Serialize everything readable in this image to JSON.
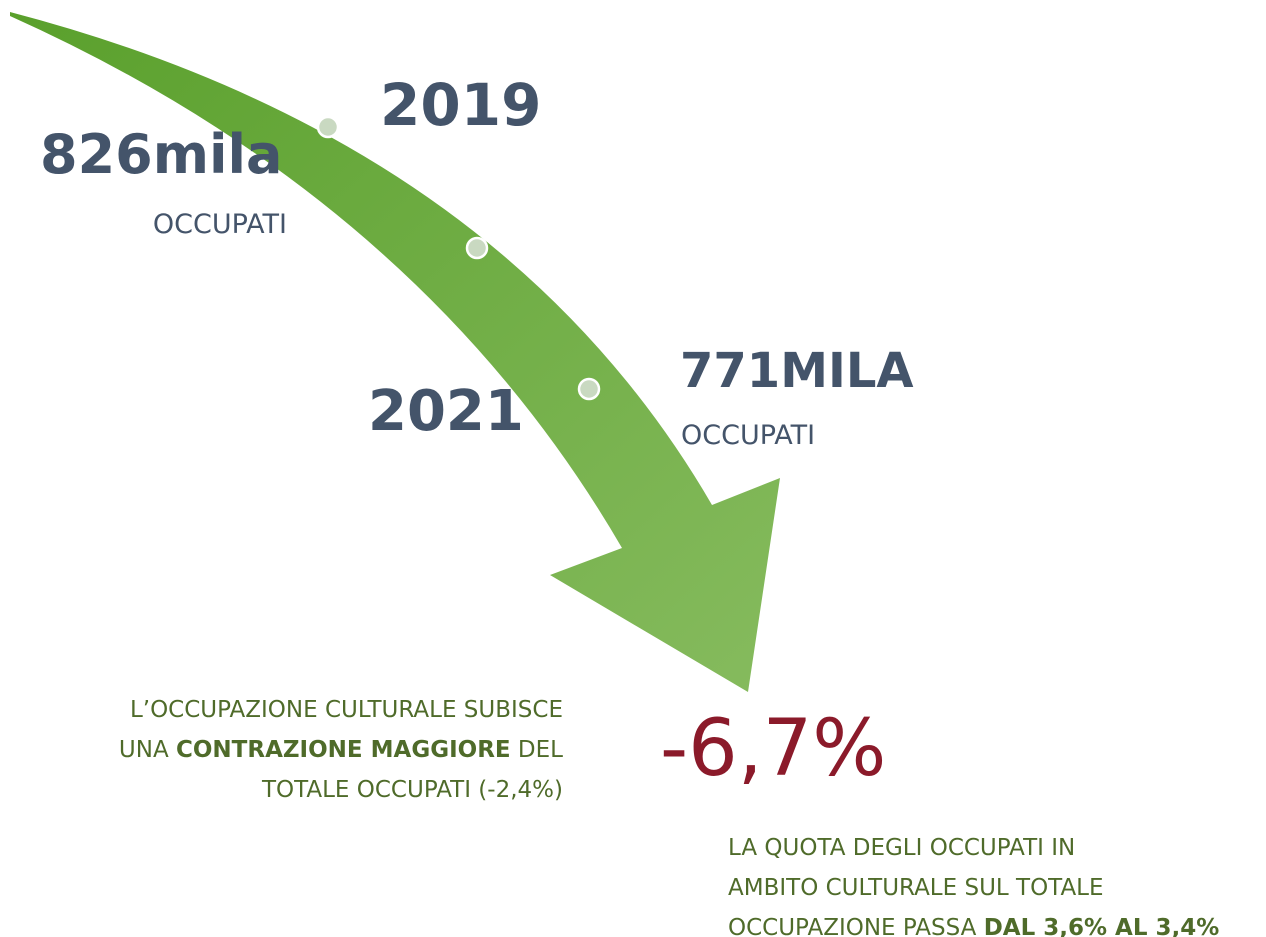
{
  "infographic": {
    "start": {
      "year": "2019",
      "value": "826mila",
      "label": "OCCUPATI"
    },
    "end": {
      "year": "2021",
      "value": "771MILA",
      "label": "OCCUPATI"
    },
    "change": "-6,7%",
    "note_left": {
      "lines": [
        [
          "L’OCCUPAZIONE CULTURALE SUBISCE"
        ],
        [
          "UNA ",
          "CONTRAZIONE MAGGIORE",
          " DEL"
        ],
        [
          "TOTALE OCCUPATI (-2,4%)"
        ]
      ]
    },
    "note_right": {
      "lines": [
        [
          "LA QUOTA DEGLI OCCUPATI IN"
        ],
        [
          "AMBITO CULTURALE SUL TOTALE"
        ],
        [
          "OCCUPAZIONE PASSA ",
          "DAL 3,6% AL 3,4%"
        ]
      ]
    }
  }
}
